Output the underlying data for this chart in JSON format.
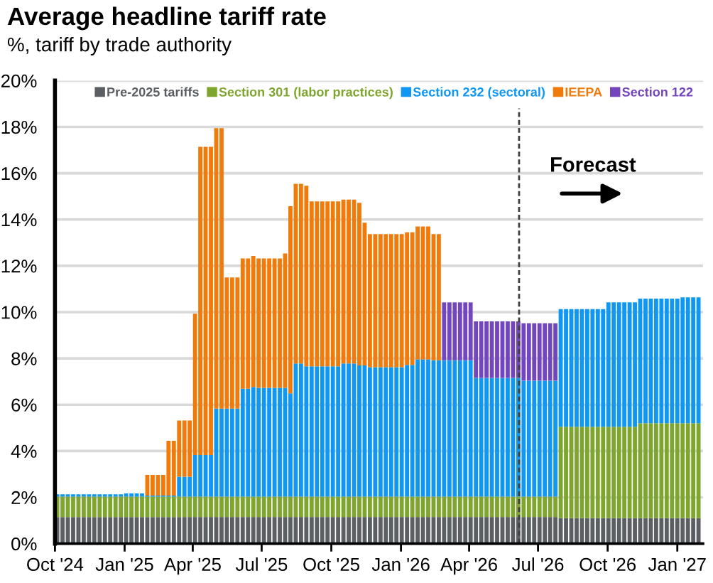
{
  "chart_data": {
    "type": "bar",
    "title": "Average headline tariff rate",
    "subtitle": "%, tariff by trade authority",
    "stacked": true,
    "x": [
      "2024-10-04",
      "2024-10-11",
      "2024-10-18",
      "2024-10-25",
      "2024-11-01",
      "2024-11-08",
      "2024-11-15",
      "2024-11-22",
      "2024-11-29",
      "2024-12-06",
      "2024-12-13",
      "2024-12-20",
      "2024-12-27",
      "2025-01-03",
      "2025-01-10",
      "2025-01-17",
      "2025-01-24",
      "2025-01-31",
      "2025-02-07",
      "2025-02-14",
      "2025-02-21",
      "2025-02-28",
      "2025-03-07",
      "2025-03-14",
      "2025-03-21",
      "2025-03-28",
      "2025-04-04",
      "2025-04-11",
      "2025-04-18",
      "2025-04-25",
      "2025-05-02",
      "2025-05-09",
      "2025-05-16",
      "2025-05-23",
      "2025-05-30",
      "2025-06-06",
      "2025-06-13",
      "2025-06-20",
      "2025-06-27",
      "2025-07-04",
      "2025-07-11",
      "2025-07-18",
      "2025-07-25",
      "2025-08-01",
      "2025-08-08",
      "2025-08-15",
      "2025-08-22",
      "2025-08-29",
      "2025-09-05",
      "2025-09-12",
      "2025-09-19",
      "2025-09-26",
      "2025-10-03",
      "2025-10-10",
      "2025-10-17",
      "2025-10-24",
      "2025-10-31",
      "2025-11-07",
      "2025-11-14",
      "2025-11-21",
      "2025-11-28",
      "2025-12-05",
      "2025-12-12",
      "2025-12-19",
      "2025-12-26",
      "2026-01-02",
      "2026-01-09",
      "2026-01-16",
      "2026-01-23",
      "2026-01-30",
      "2026-02-06",
      "2026-02-13",
      "2026-02-20",
      "2026-02-27",
      "2026-03-06",
      "2026-03-13",
      "2026-03-20",
      "2026-03-27",
      "2026-04-03",
      "2026-04-10",
      "2026-04-17",
      "2026-04-24",
      "2026-05-01",
      "2026-05-08",
      "2026-05-15",
      "2026-05-22",
      "2026-05-29",
      "2026-06-05",
      "2026-06-12",
      "2026-06-19",
      "2026-06-26",
      "2026-07-03",
      "2026-07-10",
      "2026-07-17",
      "2026-07-24",
      "2026-07-31",
      "2026-08-07",
      "2026-08-14",
      "2026-08-21",
      "2026-08-28",
      "2026-09-04",
      "2026-09-11",
      "2026-09-18",
      "2026-09-25",
      "2026-10-02",
      "2026-10-09",
      "2026-10-16",
      "2026-10-23",
      "2026-10-30",
      "2026-11-06",
      "2026-11-13",
      "2026-11-20",
      "2026-11-27",
      "2026-12-04",
      "2026-12-11",
      "2026-12-18",
      "2026-12-25",
      "2027-01-01",
      "2027-01-08",
      "2027-01-15",
      "2027-01-22",
      "2027-01-29"
    ],
    "series": [
      {
        "name": "Pre-2025 tariffs",
        "color": "#5b5f63",
        "values": [
          1.15,
          1.15,
          1.15,
          1.15,
          1.15,
          1.15,
          1.15,
          1.15,
          1.15,
          1.15,
          1.15,
          1.15,
          1.15,
          1.15,
          1.15,
          1.15,
          1.15,
          1.15,
          1.15,
          1.15,
          1.15,
          1.15,
          1.15,
          1.15,
          1.15,
          1.15,
          1.15,
          1.15,
          1.15,
          1.15,
          1.15,
          1.15,
          1.15,
          1.15,
          1.15,
          1.15,
          1.15,
          1.15,
          1.15,
          1.15,
          1.15,
          1.15,
          1.15,
          1.15,
          1.15,
          1.15,
          1.15,
          1.15,
          1.15,
          1.15,
          1.15,
          1.15,
          1.15,
          1.15,
          1.15,
          1.15,
          1.15,
          1.15,
          1.15,
          1.15,
          1.15,
          1.15,
          1.15,
          1.15,
          1.15,
          1.15,
          1.15,
          1.15,
          1.15,
          1.15,
          1.15,
          1.15,
          1.15,
          1.15,
          1.15,
          1.15,
          1.15,
          1.15,
          1.15,
          1.15,
          1.15,
          1.15,
          1.15,
          1.15,
          1.15,
          1.15,
          1.15,
          1.15,
          1.15,
          1.15,
          1.15,
          1.15,
          1.15,
          1.15,
          1.15,
          1.1,
          1.1,
          1.1,
          1.1,
          1.1,
          1.1,
          1.1,
          1.1,
          1.1,
          1.1,
          1.1,
          1.1,
          1.1,
          1.1,
          1.1,
          1.1,
          1.1,
          1.1,
          1.1,
          1.1,
          1.1,
          1.1,
          1.1,
          1.1,
          1.1,
          1.1,
          1.1
        ]
      },
      {
        "name": "Section 301 (labor practices)",
        "color": "#7ea62e",
        "values": [
          0.88,
          0.88,
          0.88,
          0.88,
          0.88,
          0.88,
          0.88,
          0.88,
          0.88,
          0.88,
          0.88,
          0.88,
          0.88,
          0.88,
          0.88,
          0.88,
          0.88,
          0.88,
          0.88,
          0.88,
          0.88,
          0.88,
          0.88,
          0.88,
          0.88,
          0.88,
          0.88,
          0.88,
          0.88,
          0.88,
          0.88,
          0.88,
          0.88,
          0.88,
          0.88,
          0.88,
          0.88,
          0.88,
          0.88,
          0.88,
          0.88,
          0.88,
          0.88,
          0.88,
          0.88,
          0.88,
          0.88,
          0.88,
          0.88,
          0.88,
          0.88,
          0.88,
          0.88,
          0.88,
          0.88,
          0.88,
          0.88,
          0.88,
          0.88,
          0.88,
          0.88,
          0.88,
          0.88,
          0.88,
          0.88,
          0.88,
          0.88,
          0.88,
          0.88,
          0.88,
          0.88,
          0.88,
          0.88,
          0.88,
          0.88,
          0.88,
          0.88,
          0.88,
          0.88,
          0.88,
          0.88,
          0.88,
          0.88,
          0.88,
          0.88,
          0.88,
          0.88,
          0.88,
          0.88,
          0.88,
          0.88,
          0.88,
          0.88,
          0.88,
          0.88,
          3.95,
          3.95,
          3.95,
          3.95,
          3.95,
          3.95,
          3.95,
          3.95,
          3.95,
          3.95,
          3.95,
          3.95,
          3.95,
          3.95,
          3.95,
          4.1,
          4.1,
          4.1,
          4.1,
          4.1,
          4.1,
          4.1,
          4.1,
          4.1,
          4.1,
          4.1,
          4.1
        ]
      },
      {
        "name": "Section 232 (sectoral)",
        "color": "#0f97f2",
        "values": [
          0.1,
          0.1,
          0.1,
          0.1,
          0.1,
          0.1,
          0.1,
          0.1,
          0.1,
          0.1,
          0.1,
          0.1,
          0.1,
          0.14,
          0.14,
          0.14,
          0.14,
          0.05,
          0.05,
          0.05,
          0.05,
          0.05,
          0.05,
          0.86,
          0.86,
          0.86,
          1.8,
          1.8,
          1.8,
          1.8,
          3.8,
          3.8,
          3.8,
          3.8,
          3.8,
          4.66,
          4.66,
          4.74,
          4.7,
          4.7,
          4.7,
          4.7,
          4.7,
          4.7,
          4.46,
          5.75,
          5.75,
          5.63,
          5.63,
          5.63,
          5.63,
          5.63,
          5.63,
          5.63,
          5.75,
          5.75,
          5.75,
          5.67,
          5.67,
          5.59,
          5.59,
          5.59,
          5.59,
          5.59,
          5.59,
          5.59,
          5.69,
          5.69,
          5.93,
          5.93,
          5.93,
          5.89,
          5.89,
          5.89,
          5.89,
          5.89,
          5.89,
          5.89,
          5.89,
          5.13,
          5.13,
          5.13,
          5.13,
          5.13,
          5.13,
          5.13,
          5.13,
          5.13,
          5.01,
          5.01,
          5.01,
          5.01,
          5.01,
          5.01,
          5.01,
          5.08,
          5.08,
          5.08,
          5.08,
          5.08,
          5.08,
          5.08,
          5.08,
          5.08,
          5.37,
          5.37,
          5.37,
          5.37,
          5.37,
          5.37,
          5.38,
          5.38,
          5.38,
          5.38,
          5.38,
          5.38,
          5.38,
          5.38,
          5.44,
          5.44,
          5.44,
          5.44
        ]
      },
      {
        "name": "IEEPA",
        "color": "#f07a0a",
        "values": [
          null,
          null,
          null,
          null,
          null,
          null,
          null,
          null,
          null,
          null,
          null,
          null,
          null,
          null,
          null,
          null,
          null,
          0.89,
          0.89,
          0.89,
          0.89,
          2.36,
          2.36,
          2.43,
          2.43,
          2.43,
          6.1,
          13.31,
          13.31,
          13.31,
          12.12,
          12.12,
          5.67,
          5.67,
          5.67,
          5.63,
          5.63,
          5.66,
          5.59,
          5.59,
          5.59,
          5.59,
          5.59,
          5.8,
          8.09,
          7.76,
          7.76,
          7.8,
          7.12,
          7.12,
          7.12,
          7.12,
          7.12,
          7.12,
          7.08,
          7.08,
          7.08,
          7.02,
          6.16,
          5.75,
          5.75,
          5.75,
          5.75,
          5.75,
          5.75,
          5.75,
          5.73,
          5.73,
          5.74,
          5.74,
          5.74,
          5.45,
          5.45,
          null,
          null,
          null,
          null,
          null,
          null,
          null,
          null,
          null,
          null,
          null,
          null,
          null,
          null,
          null,
          null,
          null,
          null,
          null,
          null,
          null,
          null,
          null,
          null,
          null,
          null,
          null,
          null,
          null,
          null,
          null,
          null,
          null,
          null,
          null,
          null,
          null,
          null,
          null,
          null,
          null,
          null,
          null,
          null,
          null,
          null,
          null,
          null,
          null
        ]
      },
      {
        "name": "Section 122",
        "color": "#7446bd",
        "values": [
          null,
          null,
          null,
          null,
          null,
          null,
          null,
          null,
          null,
          null,
          null,
          null,
          null,
          null,
          null,
          null,
          null,
          null,
          null,
          null,
          null,
          null,
          null,
          null,
          null,
          null,
          null,
          null,
          null,
          null,
          null,
          null,
          null,
          null,
          null,
          null,
          null,
          null,
          null,
          null,
          null,
          null,
          null,
          null,
          null,
          null,
          null,
          null,
          null,
          null,
          null,
          null,
          null,
          null,
          null,
          null,
          null,
          null,
          null,
          null,
          null,
          null,
          null,
          null,
          null,
          null,
          null,
          null,
          null,
          null,
          null,
          null,
          null,
          2.5,
          2.5,
          2.5,
          2.5,
          2.5,
          2.5,
          2.44,
          2.44,
          2.44,
          2.44,
          2.44,
          2.44,
          2.44,
          2.44,
          2.44,
          2.48,
          2.48,
          2.48,
          2.48,
          2.48,
          2.48,
          2.48,
          null,
          null,
          null,
          null,
          null,
          null,
          null,
          null,
          null,
          null,
          null,
          null,
          null,
          null,
          null,
          null,
          null,
          null,
          null,
          null,
          null,
          null,
          null,
          null,
          null,
          null,
          null
        ]
      }
    ],
    "xlim": [
      "2024-10-01",
      "2027-02-04"
    ],
    "xticks": [
      {
        "value": "2024-10-01",
        "label": "Oct '24"
      },
      {
        "value": "2025-01-01",
        "label": "Jan '25"
      },
      {
        "value": "2025-04-01",
        "label": "Apr '25"
      },
      {
        "value": "2025-07-01",
        "label": "Jul '25"
      },
      {
        "value": "2025-10-01",
        "label": "Oct '25"
      },
      {
        "value": "2026-01-01",
        "label": "Jan '26"
      },
      {
        "value": "2026-04-01",
        "label": "Apr '26"
      },
      {
        "value": "2026-07-01",
        "label": "Jul '26"
      },
      {
        "value": "2026-10-01",
        "label": "Oct '26"
      },
      {
        "value": "2027-01-01",
        "label": "Jan '27"
      }
    ],
    "ylim": [
      0,
      20
    ],
    "yticks": [
      {
        "value": 0,
        "label": "0%"
      },
      {
        "value": 2,
        "label": "2%"
      },
      {
        "value": 4,
        "label": "4%"
      },
      {
        "value": 6,
        "label": "6%"
      },
      {
        "value": 8,
        "label": "8%"
      },
      {
        "value": 10,
        "label": "10%"
      },
      {
        "value": 12,
        "label": "12%"
      },
      {
        "value": 14,
        "label": "14%"
      },
      {
        "value": 16,
        "label": "16%"
      },
      {
        "value": 18,
        "label": "18%"
      },
      {
        "value": 20,
        "label": "20%"
      }
    ],
    "ref_lines": [
      {
        "axis": "x",
        "value": "2026-06-06",
        "color": "#404040",
        "line_style": "dashed"
      }
    ],
    "annotations": [
      "Forecast"
    ],
    "grid": "y",
    "legend": "top"
  }
}
